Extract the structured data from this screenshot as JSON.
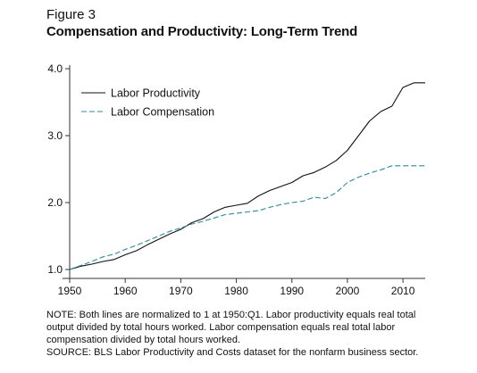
{
  "figure": {
    "label": "Figure 3",
    "title": "Compensation and Productivity: Long-Term Trend"
  },
  "notes": [
    "NOTE: Both lines are normalized to 1 at 1950:Q1. Labor productivity equals real total",
    "output divided by total hours worked. Labor compensation equals real total labor",
    "compensation divided by total hours worked.",
    "SOURCE: BLS Labor Productivity and Costs dataset for the nonfarm business sector."
  ],
  "colors": {
    "productivity": "#111111",
    "compensation": "#2c8a9c",
    "axis": "#333333"
  },
  "chart_data": {
    "type": "line",
    "title": "Compensation and Productivity: Long-Term Trend",
    "xlabel": "",
    "ylabel": "",
    "xlim": [
      1950,
      2014
    ],
    "ylim": [
      1.0,
      4.0
    ],
    "x_ticks": [
      1950,
      1960,
      1970,
      1980,
      1990,
      2000,
      2010
    ],
    "y_ticks": [
      "1.0",
      "2.0",
      "3.0",
      "4.0"
    ],
    "grid": false,
    "legend": "top-left",
    "x": [
      1950,
      1952,
      1954,
      1956,
      1958,
      1960,
      1962,
      1964,
      1966,
      1968,
      1970,
      1972,
      1974,
      1976,
      1978,
      1980,
      1982,
      1984,
      1986,
      1988,
      1990,
      1992,
      1994,
      1996,
      1998,
      2000,
      2002,
      2004,
      2006,
      2008,
      2010,
      2012,
      2014
    ],
    "series": [
      {
        "name": "Labor Productivity",
        "style": "solid",
        "values": [
          1.0,
          1.05,
          1.08,
          1.12,
          1.15,
          1.22,
          1.28,
          1.37,
          1.45,
          1.53,
          1.6,
          1.7,
          1.76,
          1.86,
          1.93,
          1.96,
          1.99,
          2.1,
          2.18,
          2.24,
          2.3,
          2.4,
          2.45,
          2.53,
          2.63,
          2.78,
          3.0,
          3.22,
          3.36,
          3.44,
          3.72,
          3.79,
          3.79
        ]
      },
      {
        "name": "Labor Compensation",
        "style": "dashed",
        "values": [
          1.0,
          1.06,
          1.12,
          1.19,
          1.23,
          1.3,
          1.36,
          1.43,
          1.5,
          1.57,
          1.62,
          1.68,
          1.72,
          1.77,
          1.82,
          1.84,
          1.86,
          1.88,
          1.93,
          1.97,
          2.0,
          2.02,
          2.08,
          2.06,
          2.15,
          2.3,
          2.38,
          2.44,
          2.49,
          2.55,
          2.55,
          2.55,
          2.55
        ]
      }
    ]
  }
}
